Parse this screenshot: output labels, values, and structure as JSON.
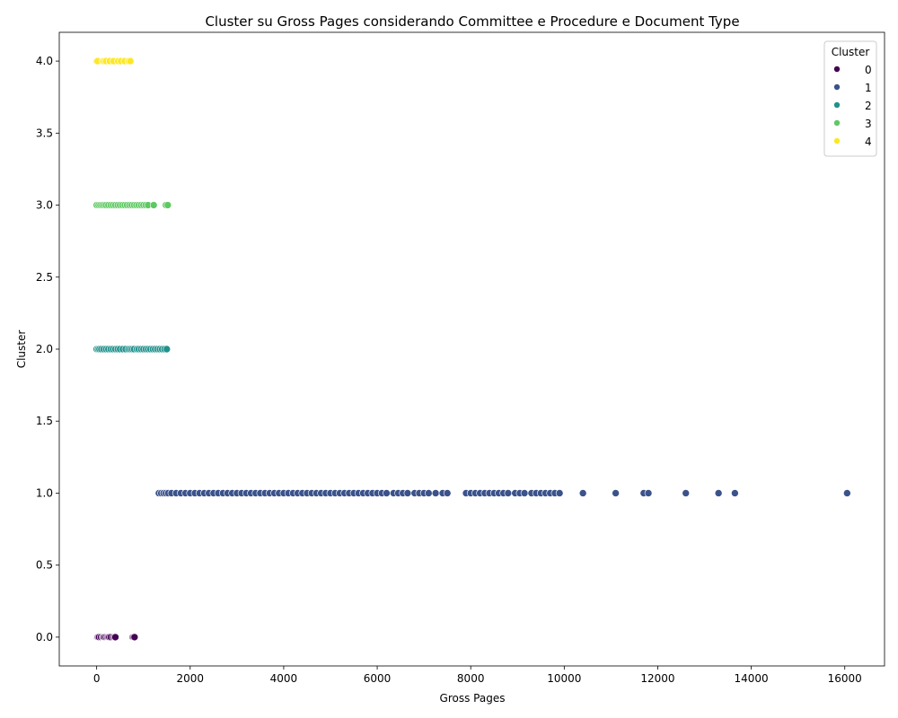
{
  "chart_data": {
    "type": "scatter",
    "title": "Cluster su Gross Pages considerando Committee e Procedure e Document Type",
    "xlabel": "Gross Pages",
    "ylabel": "Cluster",
    "xlim": [
      -800,
      16850
    ],
    "ylim": [
      -0.2,
      4.2
    ],
    "x_ticks": [
      0,
      2000,
      4000,
      6000,
      8000,
      10000,
      12000,
      14000,
      16000
    ],
    "y_ticks": [
      0.0,
      0.5,
      1.0,
      1.5,
      2.0,
      2.5,
      3.0,
      3.5,
      4.0
    ],
    "x_tick_labels": [
      "0",
      "2000",
      "4000",
      "6000",
      "8000",
      "10000",
      "12000",
      "14000",
      "16000"
    ],
    "y_tick_labels": [
      "0.0",
      "0.5",
      "1.0",
      "1.5",
      "2.0",
      "2.5",
      "3.0",
      "3.5",
      "4.0"
    ],
    "grid": false,
    "legend": {
      "title": "Cluster",
      "placement": "top-right",
      "entries": [
        "0",
        "1",
        "2",
        "3",
        "4"
      ]
    },
    "colors": {
      "0": "#440154",
      "1": "#3b528b",
      "2": "#21918c",
      "3": "#5ec962",
      "4": "#fde725"
    },
    "series": [
      {
        "name": "0",
        "y": 0,
        "x": [
          0,
          10,
          20,
          30,
          50,
          90,
          130,
          150,
          170,
          200,
          230,
          250,
          270,
          300,
          350,
          380,
          400,
          770,
          790,
          810
        ]
      },
      {
        "name": "1",
        "y": 1,
        "x": [
          1330,
          1380,
          1430,
          1480,
          1530,
          1600,
          1700,
          1800,
          1900,
          2000,
          2100,
          2200,
          2300,
          2400,
          2500,
          2600,
          2700,
          2800,
          2900,
          3000,
          3100,
          3200,
          3300,
          3400,
          3500,
          3600,
          3700,
          3800,
          3900,
          4000,
          4100,
          4200,
          4300,
          4400,
          4500,
          4600,
          4700,
          4800,
          4900,
          5000,
          5100,
          5200,
          5300,
          5400,
          5500,
          5600,
          5700,
          5800,
          5900,
          6000,
          6100,
          6200,
          6350,
          6450,
          6550,
          6650,
          6800,
          6900,
          7000,
          7100,
          7250,
          7400,
          7500,
          7900,
          8000,
          8100,
          8200,
          8300,
          8400,
          8500,
          8600,
          8700,
          8800,
          8950,
          9050,
          9150,
          9300,
          9400,
          9500,
          9600,
          9700,
          9800,
          9900,
          10400,
          11100,
          11700,
          11800,
          12600,
          13300,
          13650,
          16050
        ]
      },
      {
        "name": "2",
        "y": 2,
        "x": [
          0,
          30,
          60,
          100,
          150,
          200,
          250,
          300,
          350,
          400,
          450,
          500,
          560,
          620,
          680,
          720,
          760,
          800,
          860,
          900,
          950,
          1000,
          1050,
          1100,
          1150,
          1200,
          1250,
          1300,
          1350,
          1400,
          1450,
          1500
        ]
      },
      {
        "name": "3",
        "y": 3,
        "x": [
          0,
          40,
          80,
          120,
          160,
          200,
          250,
          300,
          350,
          400,
          450,
          500,
          550,
          600,
          650,
          700,
          750,
          800,
          850,
          900,
          950,
          1000,
          1050,
          1100,
          1220,
          1480,
          1520
        ]
      },
      {
        "name": "4",
        "y": 4,
        "x": [
          0,
          20,
          130,
          160,
          200,
          280,
          360,
          460,
          520,
          600,
          680,
          720
        ]
      }
    ]
  }
}
